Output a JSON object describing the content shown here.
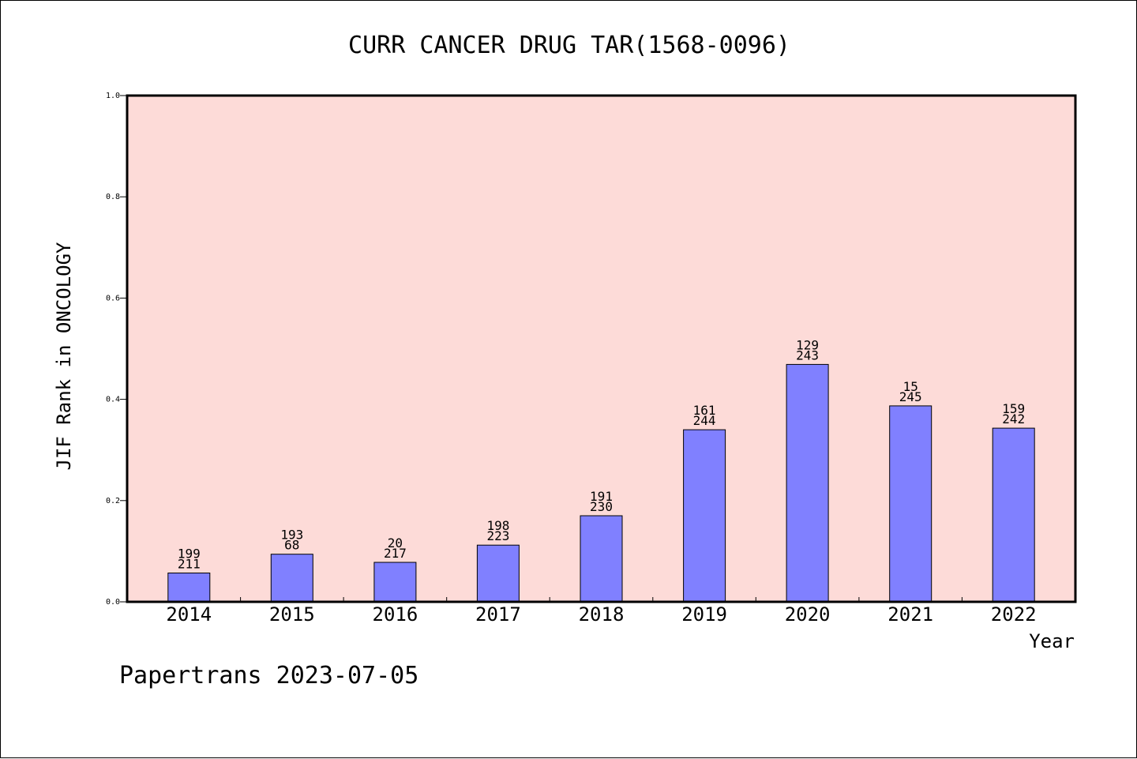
{
  "chart_data": {
    "type": "bar",
    "title": "CURR CANCER DRUG TAR(1568-0096)",
    "xlabel": "Year",
    "ylabel": "JIF Rank in ONCOLOGY",
    "ylim": [
      0,
      1.0
    ],
    "yticks": [
      "0.0",
      "0.2",
      "0.4",
      "0.6",
      "0.8",
      "1.0"
    ],
    "categories": [
      "2014",
      "2015",
      "2016",
      "2017",
      "2018",
      "2019",
      "2020",
      "2021",
      "2022"
    ],
    "values": [
      0.057,
      0.094,
      0.078,
      0.112,
      0.17,
      0.34,
      0.469,
      0.387,
      0.343
    ],
    "labels_top": [
      "199",
      "193",
      "20",
      "198",
      "191",
      "161",
      "129",
      "15",
      "159"
    ],
    "labels_bottom": [
      "211",
      "68",
      "217",
      "223",
      "230",
      "244",
      "243",
      "245",
      "242"
    ],
    "grid": false,
    "colors": {
      "plot_background": "#fddbd8",
      "bar_fill": "#8080ff",
      "bar_stroke": "#000000"
    }
  },
  "footer": {
    "text": "Papertrans 2023-07-05"
  }
}
